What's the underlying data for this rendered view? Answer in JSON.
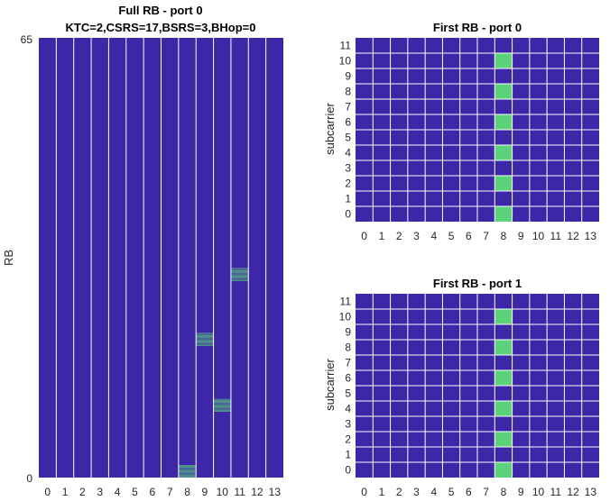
{
  "colors": {
    "empty": "#3e26a8",
    "filled": "#5cd37a",
    "grid": "#ffffff"
  },
  "chart_data": [
    {
      "type": "heatmap",
      "title": "Full RB - port 0",
      "subtitle": "KTC=2,CSRS=17,BSRS=3,BHop=0",
      "xlabel": "",
      "ylabel": "RB",
      "x_ticks": [
        "0",
        "1",
        "2",
        "3",
        "4",
        "5",
        "6",
        "7",
        "8",
        "9",
        "10",
        "11",
        "12",
        "13"
      ],
      "y_tick_labels": [
        "0",
        "65"
      ],
      "rows": 800,
      "grid": "vertical lines only",
      "filled_blocks": [
        {
          "symbol": 8,
          "rb_start": 0,
          "rb_end": 2,
          "subcarriers_every": 2
        },
        {
          "symbol": 10,
          "rb_start": 10,
          "rb_end": 12,
          "subcarriers_every": 2
        },
        {
          "symbol": 9,
          "rb_start": 20,
          "rb_end": 22,
          "subcarriers_every": 2
        },
        {
          "symbol": 11,
          "rb_start": 29.8,
          "rb_end": 31.8,
          "subcarriers_every": 2
        }
      ]
    },
    {
      "type": "heatmap",
      "title": "First RB - port 0",
      "xlabel": "",
      "ylabel": "subcarrier",
      "x_ticks": [
        "0",
        "1",
        "2",
        "3",
        "4",
        "5",
        "6",
        "7",
        "8",
        "9",
        "10",
        "11",
        "12",
        "13"
      ],
      "y_ticks": [
        "0",
        "1",
        "2",
        "3",
        "4",
        "5",
        "6",
        "7",
        "8",
        "9",
        "10",
        "11"
      ],
      "grid": "on",
      "filled_cells": [
        [
          8,
          0
        ],
        [
          8,
          2
        ],
        [
          8,
          4
        ],
        [
          8,
          6
        ],
        [
          8,
          8
        ],
        [
          8,
          10
        ]
      ]
    },
    {
      "type": "heatmap",
      "title": "First RB - port 1",
      "xlabel": "",
      "ylabel": "subcarrier",
      "x_ticks": [
        "0",
        "1",
        "2",
        "3",
        "4",
        "5",
        "6",
        "7",
        "8",
        "9",
        "10",
        "11",
        "12",
        "13"
      ],
      "y_ticks": [
        "0",
        "1",
        "2",
        "3",
        "4",
        "5",
        "6",
        "7",
        "8",
        "9",
        "10",
        "11"
      ],
      "grid": "on",
      "filled_cells": [
        [
          8,
          0
        ],
        [
          8,
          2
        ],
        [
          8,
          4
        ],
        [
          8,
          6
        ],
        [
          8,
          8
        ],
        [
          8,
          10
        ]
      ]
    }
  ]
}
